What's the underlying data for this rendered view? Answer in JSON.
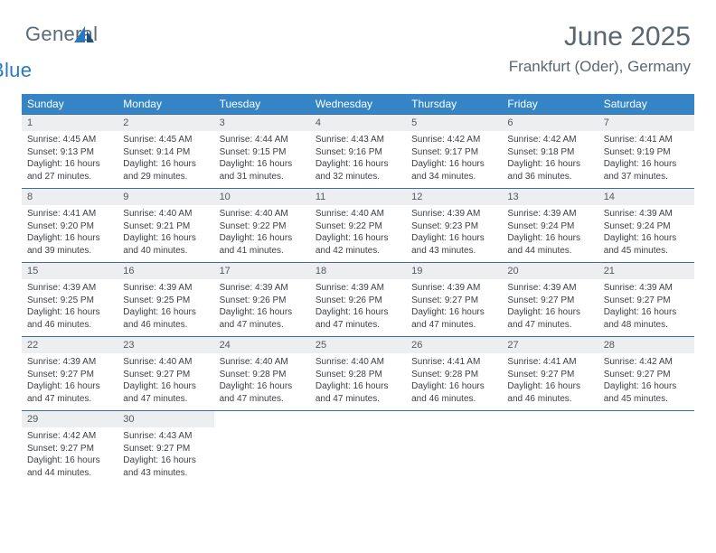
{
  "brand": {
    "word1": "General",
    "word2": "Blue",
    "word1_color": "#5c6a78",
    "word2_color": "#2a78c2",
    "icon_fill": "#2a78c2"
  },
  "header": {
    "title": "June 2025",
    "location": "Frankfurt (Oder), Germany",
    "title_color": "#5b6770",
    "title_fontsize": 30,
    "location_fontsize": 17
  },
  "calendar": {
    "header_bg": "#3585c6",
    "header_text_color": "#ffffff",
    "daynum_bg": "#eceeef",
    "daynum_color": "#4f5a63",
    "body_text_color": "#3b3f44",
    "week_border_color": "#3c6fa4",
    "columns": [
      "Sunday",
      "Monday",
      "Tuesday",
      "Wednesday",
      "Thursday",
      "Friday",
      "Saturday"
    ],
    "weeks": [
      [
        {
          "n": "1",
          "sunrise": "4:45 AM",
          "sunset": "9:13 PM",
          "daylight": "16 hours and 27 minutes."
        },
        {
          "n": "2",
          "sunrise": "4:45 AM",
          "sunset": "9:14 PM",
          "daylight": "16 hours and 29 minutes."
        },
        {
          "n": "3",
          "sunrise": "4:44 AM",
          "sunset": "9:15 PM",
          "daylight": "16 hours and 31 minutes."
        },
        {
          "n": "4",
          "sunrise": "4:43 AM",
          "sunset": "9:16 PM",
          "daylight": "16 hours and 32 minutes."
        },
        {
          "n": "5",
          "sunrise": "4:42 AM",
          "sunset": "9:17 PM",
          "daylight": "16 hours and 34 minutes."
        },
        {
          "n": "6",
          "sunrise": "4:42 AM",
          "sunset": "9:18 PM",
          "daylight": "16 hours and 36 minutes."
        },
        {
          "n": "7",
          "sunrise": "4:41 AM",
          "sunset": "9:19 PM",
          "daylight": "16 hours and 37 minutes."
        }
      ],
      [
        {
          "n": "8",
          "sunrise": "4:41 AM",
          "sunset": "9:20 PM",
          "daylight": "16 hours and 39 minutes."
        },
        {
          "n": "9",
          "sunrise": "4:40 AM",
          "sunset": "9:21 PM",
          "daylight": "16 hours and 40 minutes."
        },
        {
          "n": "10",
          "sunrise": "4:40 AM",
          "sunset": "9:22 PM",
          "daylight": "16 hours and 41 minutes."
        },
        {
          "n": "11",
          "sunrise": "4:40 AM",
          "sunset": "9:22 PM",
          "daylight": "16 hours and 42 minutes."
        },
        {
          "n": "12",
          "sunrise": "4:39 AM",
          "sunset": "9:23 PM",
          "daylight": "16 hours and 43 minutes."
        },
        {
          "n": "13",
          "sunrise": "4:39 AM",
          "sunset": "9:24 PM",
          "daylight": "16 hours and 44 minutes."
        },
        {
          "n": "14",
          "sunrise": "4:39 AM",
          "sunset": "9:24 PM",
          "daylight": "16 hours and 45 minutes."
        }
      ],
      [
        {
          "n": "15",
          "sunrise": "4:39 AM",
          "sunset": "9:25 PM",
          "daylight": "16 hours and 46 minutes."
        },
        {
          "n": "16",
          "sunrise": "4:39 AM",
          "sunset": "9:25 PM",
          "daylight": "16 hours and 46 minutes."
        },
        {
          "n": "17",
          "sunrise": "4:39 AM",
          "sunset": "9:26 PM",
          "daylight": "16 hours and 47 minutes."
        },
        {
          "n": "18",
          "sunrise": "4:39 AM",
          "sunset": "9:26 PM",
          "daylight": "16 hours and 47 minutes."
        },
        {
          "n": "19",
          "sunrise": "4:39 AM",
          "sunset": "9:27 PM",
          "daylight": "16 hours and 47 minutes."
        },
        {
          "n": "20",
          "sunrise": "4:39 AM",
          "sunset": "9:27 PM",
          "daylight": "16 hours and 47 minutes."
        },
        {
          "n": "21",
          "sunrise": "4:39 AM",
          "sunset": "9:27 PM",
          "daylight": "16 hours and 48 minutes."
        }
      ],
      [
        {
          "n": "22",
          "sunrise": "4:39 AM",
          "sunset": "9:27 PM",
          "daylight": "16 hours and 47 minutes."
        },
        {
          "n": "23",
          "sunrise": "4:40 AM",
          "sunset": "9:27 PM",
          "daylight": "16 hours and 47 minutes."
        },
        {
          "n": "24",
          "sunrise": "4:40 AM",
          "sunset": "9:28 PM",
          "daylight": "16 hours and 47 minutes."
        },
        {
          "n": "25",
          "sunrise": "4:40 AM",
          "sunset": "9:28 PM",
          "daylight": "16 hours and 47 minutes."
        },
        {
          "n": "26",
          "sunrise": "4:41 AM",
          "sunset": "9:28 PM",
          "daylight": "16 hours and 46 minutes."
        },
        {
          "n": "27",
          "sunrise": "4:41 AM",
          "sunset": "9:27 PM",
          "daylight": "16 hours and 46 minutes."
        },
        {
          "n": "28",
          "sunrise": "4:42 AM",
          "sunset": "9:27 PM",
          "daylight": "16 hours and 45 minutes."
        }
      ],
      [
        {
          "n": "29",
          "sunrise": "4:42 AM",
          "sunset": "9:27 PM",
          "daylight": "16 hours and 44 minutes."
        },
        {
          "n": "30",
          "sunrise": "4:43 AM",
          "sunset": "9:27 PM",
          "daylight": "16 hours and 43 minutes."
        },
        {
          "empty": true
        },
        {
          "empty": true
        },
        {
          "empty": true
        },
        {
          "empty": true
        },
        {
          "empty": true
        }
      ]
    ],
    "labels": {
      "sunrise_prefix": "Sunrise: ",
      "sunset_prefix": "Sunset: ",
      "daylight_prefix": "Daylight: "
    }
  }
}
